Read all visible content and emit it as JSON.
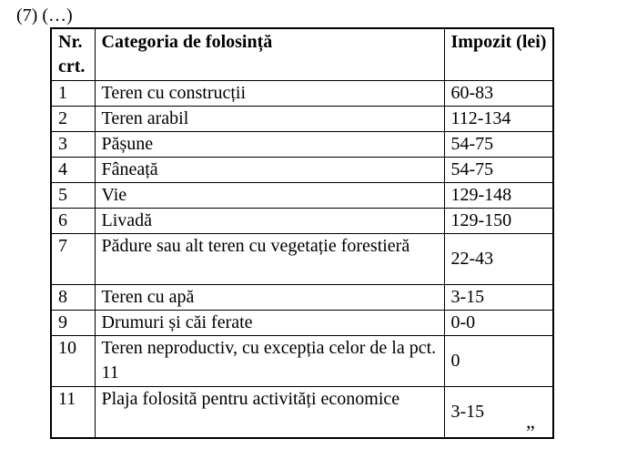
{
  "page": {
    "intro": "(7) (…)",
    "closing_quote": "”"
  },
  "table": {
    "headers": {
      "nr": "Nr. crt.",
      "categoria": "Categoria de folosință",
      "impozit": "Impozit (lei)"
    },
    "rows": [
      {
        "nr": "1",
        "categoria": "Teren cu construcții",
        "impozit": "60-83"
      },
      {
        "nr": "2",
        "categoria": "Teren arabil",
        "impozit": "112-134"
      },
      {
        "nr": "3",
        "categoria": "Pășune",
        "impozit": "54-75"
      },
      {
        "nr": "4",
        "categoria": "Fâneață",
        "impozit": "54-75"
      },
      {
        "nr": "5",
        "categoria": "Vie",
        "impozit": "129-148"
      },
      {
        "nr": "6",
        "categoria": "Livadă",
        "impozit": "129-150"
      },
      {
        "nr": "7",
        "categoria": "Pădure sau alt teren cu vegetație forestieră",
        "impozit": "22-43"
      },
      {
        "nr": "8",
        "categoria": "Teren cu apă",
        "impozit": "3-15"
      },
      {
        "nr": "9",
        "categoria": "Drumuri și căi ferate",
        "impozit": "0-0"
      },
      {
        "nr": "10",
        "categoria": "Teren neproductiv, cu excepția celor de la pct. 11",
        "impozit": "0"
      },
      {
        "nr": "11",
        "categoria": "Plaja folosită pentru activități economice",
        "impozit": "3-15"
      }
    ]
  }
}
